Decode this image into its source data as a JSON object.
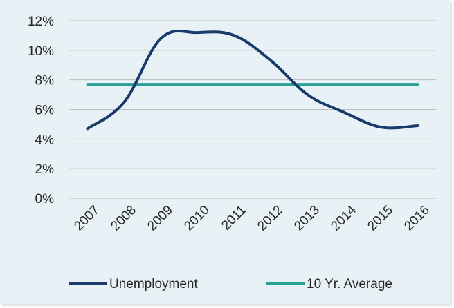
{
  "chart_data": {
    "type": "line",
    "x": [
      "2007",
      "2008",
      "2009",
      "2010",
      "2011",
      "2012",
      "2013",
      "2014",
      "2015",
      "2016"
    ],
    "series": [
      {
        "name": "Unemployment",
        "values": [
          4.7,
          6.5,
          10.8,
          11.2,
          11.0,
          9.3,
          7.0,
          5.8,
          4.8,
          4.9
        ],
        "color": "#1a3a6b"
      },
      {
        "name": "10 Yr. Average",
        "values": [
          7.7,
          7.7,
          7.7,
          7.7,
          7.7,
          7.7,
          7.7,
          7.7,
          7.7,
          7.7
        ],
        "color": "#2aa198"
      }
    ],
    "yticks": [
      "0%",
      "2%",
      "4%",
      "6%",
      "8%",
      "10%",
      "12%"
    ],
    "ylim": [
      0,
      12
    ],
    "grid": true,
    "legend_position": "bottom",
    "background": "#e8f1f5",
    "gridline_color": "#bfbfbf"
  }
}
